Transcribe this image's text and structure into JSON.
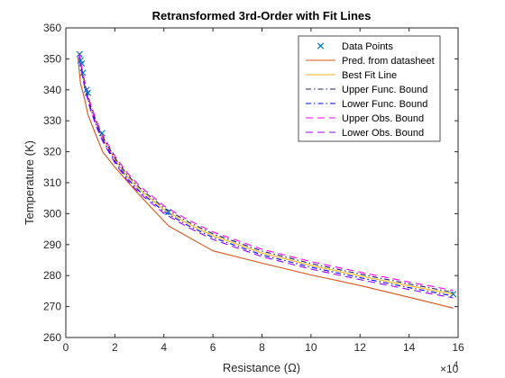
{
  "chart_data": {
    "type": "line",
    "title": "Retransformed 3rd-Order with Fit Lines",
    "xlabel": "Resistance (Ω)",
    "ylabel": "Temperature (K)",
    "x_exponent_base": "×10",
    "x_exponent_power": "4",
    "xlim": [
      0,
      160000
    ],
    "ylim": [
      260,
      360
    ],
    "xticks": [
      0,
      20000,
      40000,
      60000,
      80000,
      100000,
      120000,
      140000,
      160000
    ],
    "xtick_labels": [
      "0",
      "2",
      "4",
      "6",
      "8",
      "10",
      "12",
      "14",
      "16"
    ],
    "yticks": [
      260,
      270,
      280,
      290,
      300,
      310,
      320,
      330,
      340,
      350,
      360
    ],
    "ytick_labels": [
      "260",
      "270",
      "280",
      "290",
      "300",
      "310",
      "320",
      "330",
      "340",
      "350",
      "360"
    ],
    "grid": false,
    "legend_position": "top-right",
    "series": [
      {
        "name": "Data Points",
        "kind": "markers",
        "color": "#0072BD",
        "x": [
          5600,
          6000,
          6500,
          7000,
          8500,
          9000,
          14800,
          41800,
          158000
        ],
        "y": [
          351.5,
          349.5,
          348.5,
          345.5,
          340.0,
          339.0,
          326.0,
          300.5,
          274.0
        ]
      },
      {
        "name": "Pred. from datasheet",
        "kind": "line",
        "color": "#D95319",
        "dash": "",
        "x": [
          5000,
          6000,
          7500,
          9000,
          12000,
          15000,
          20000,
          30000,
          42000,
          60000,
          80000,
          100000,
          120000,
          140000,
          158000
        ],
        "y": [
          350.0,
          342.0,
          337.5,
          332.0,
          326.0,
          320.0,
          315.0,
          306.0,
          296.0,
          288.0,
          284.0,
          280.2,
          276.8,
          273.0,
          269.5
        ]
      },
      {
        "name": "Best Fit Line",
        "kind": "line",
        "color": "#EDB120",
        "dash": "",
        "x": [
          5500,
          6500,
          8000,
          10000,
          12500,
          15000,
          20000,
          25000,
          30000,
          40000,
          50000,
          60000,
          80000,
          100000,
          120000,
          140000,
          158000
        ],
        "y": [
          351.0,
          346.3,
          340.6,
          334.6,
          329.0,
          324.4,
          317.5,
          312.0,
          307.8,
          301.3,
          296.7,
          292.9,
          287.3,
          283.3,
          279.9,
          276.7,
          274.0
        ]
      },
      {
        "name": "Upper Func. Bound",
        "kind": "line",
        "color": "#1f1f5f",
        "dash": "6,3,1.5,3",
        "x": [
          5500,
          6500,
          8000,
          10000,
          12500,
          15000,
          20000,
          25000,
          30000,
          40000,
          50000,
          60000,
          80000,
          100000,
          120000,
          140000,
          158000
        ],
        "y": [
          351.4,
          346.8,
          341.1,
          335.1,
          329.5,
          324.9,
          318.0,
          312.6,
          308.4,
          301.9,
          297.3,
          293.5,
          287.9,
          283.9,
          280.5,
          277.3,
          274.6
        ]
      },
      {
        "name": "Lower Func. Bound",
        "kind": "line",
        "color": "#0000ff",
        "dash": "6,3,1.5,3",
        "x": [
          5500,
          6500,
          8000,
          10000,
          12500,
          15000,
          20000,
          25000,
          30000,
          40000,
          50000,
          60000,
          80000,
          100000,
          120000,
          140000,
          158000
        ],
        "y": [
          350.6,
          345.8,
          340.1,
          334.1,
          328.5,
          323.9,
          317.0,
          311.4,
          307.2,
          300.7,
          296.1,
          292.3,
          286.7,
          282.7,
          279.3,
          276.1,
          273.4
        ]
      },
      {
        "name": "Upper Obs. Bound",
        "kind": "line",
        "color": "#ff00ff",
        "dash": "8,5",
        "x": [
          5500,
          6500,
          8000,
          10000,
          12500,
          15000,
          20000,
          25000,
          30000,
          40000,
          50000,
          60000,
          80000,
          100000,
          120000,
          140000,
          158000
        ],
        "y": [
          351.9,
          347.3,
          341.6,
          335.6,
          330.0,
          325.4,
          318.6,
          313.2,
          309.0,
          302.5,
          297.9,
          294.1,
          288.5,
          284.5,
          281.1,
          277.9,
          275.2
        ]
      },
      {
        "name": "Lower Obs. Bound",
        "kind": "line",
        "color": "#9900ff",
        "dash": "8,5",
        "x": [
          5500,
          6500,
          8000,
          10000,
          12500,
          15000,
          20000,
          25000,
          30000,
          40000,
          50000,
          60000,
          80000,
          100000,
          120000,
          140000,
          158000
        ],
        "y": [
          350.1,
          345.3,
          339.6,
          333.6,
          328.0,
          323.4,
          316.4,
          310.8,
          306.6,
          300.1,
          295.5,
          291.7,
          286.1,
          282.1,
          278.7,
          275.5,
          272.8
        ]
      }
    ]
  }
}
